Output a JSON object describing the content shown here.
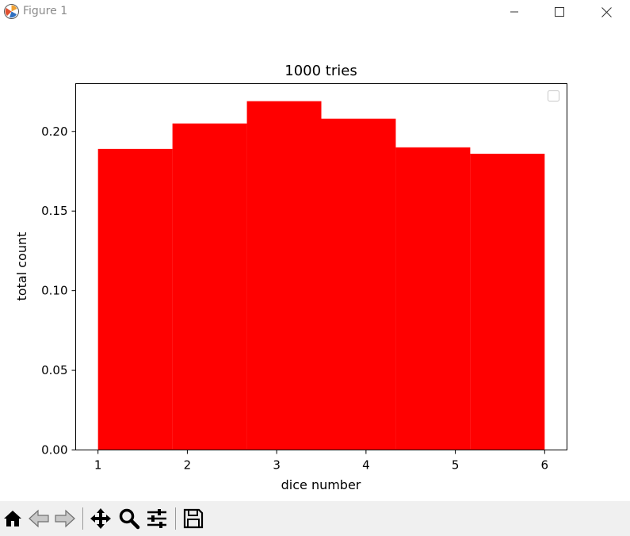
{
  "window": {
    "title": "Figure 1",
    "app_icon": "matplotlib-icon",
    "controls": [
      "minimize-icon",
      "maximize-icon",
      "close-icon"
    ]
  },
  "toolbar": {
    "buttons": [
      {
        "name": "home-button",
        "icon": "home-icon"
      },
      {
        "name": "back-button",
        "icon": "back-arrow-icon"
      },
      {
        "name": "forward-button",
        "icon": "forward-arrow-icon"
      },
      {
        "name": "pan-button",
        "icon": "move-icon"
      },
      {
        "name": "zoom-button",
        "icon": "zoom-icon"
      },
      {
        "name": "configure-subplots-button",
        "icon": "sliders-icon"
      },
      {
        "name": "save-button",
        "icon": "save-icon"
      }
    ]
  },
  "chart_data": {
    "type": "bar",
    "title": "1000 tries",
    "xlabel": "dice number",
    "ylabel": "total count",
    "bins": [
      {
        "start": 1.0,
        "end": 1.8333,
        "value": 0.189
      },
      {
        "start": 1.8333,
        "end": 2.6667,
        "value": 0.205
      },
      {
        "start": 2.6667,
        "end": 3.5,
        "value": 0.219
      },
      {
        "start": 3.5,
        "end": 4.3333,
        "value": 0.208
      },
      {
        "start": 4.3333,
        "end": 5.1667,
        "value": 0.19
      },
      {
        "start": 5.1667,
        "end": 6.0,
        "value": 0.186
      }
    ],
    "bar_color": "#ff0000",
    "xlim": [
      0.75,
      6.25
    ],
    "ylim": [
      0,
      0.23
    ],
    "xticks": [
      1,
      2,
      3,
      4,
      5,
      6
    ],
    "xtick_labels": [
      "1",
      "2",
      "3",
      "4",
      "5",
      "6"
    ],
    "yticks": [
      0,
      0.05,
      0.1,
      0.15,
      0.2
    ],
    "ytick_labels": [
      "0.00",
      "0.05",
      "0.10",
      "0.15",
      "0.20"
    ],
    "grid": false,
    "legend": {
      "placement": "top-right",
      "entries": []
    }
  }
}
